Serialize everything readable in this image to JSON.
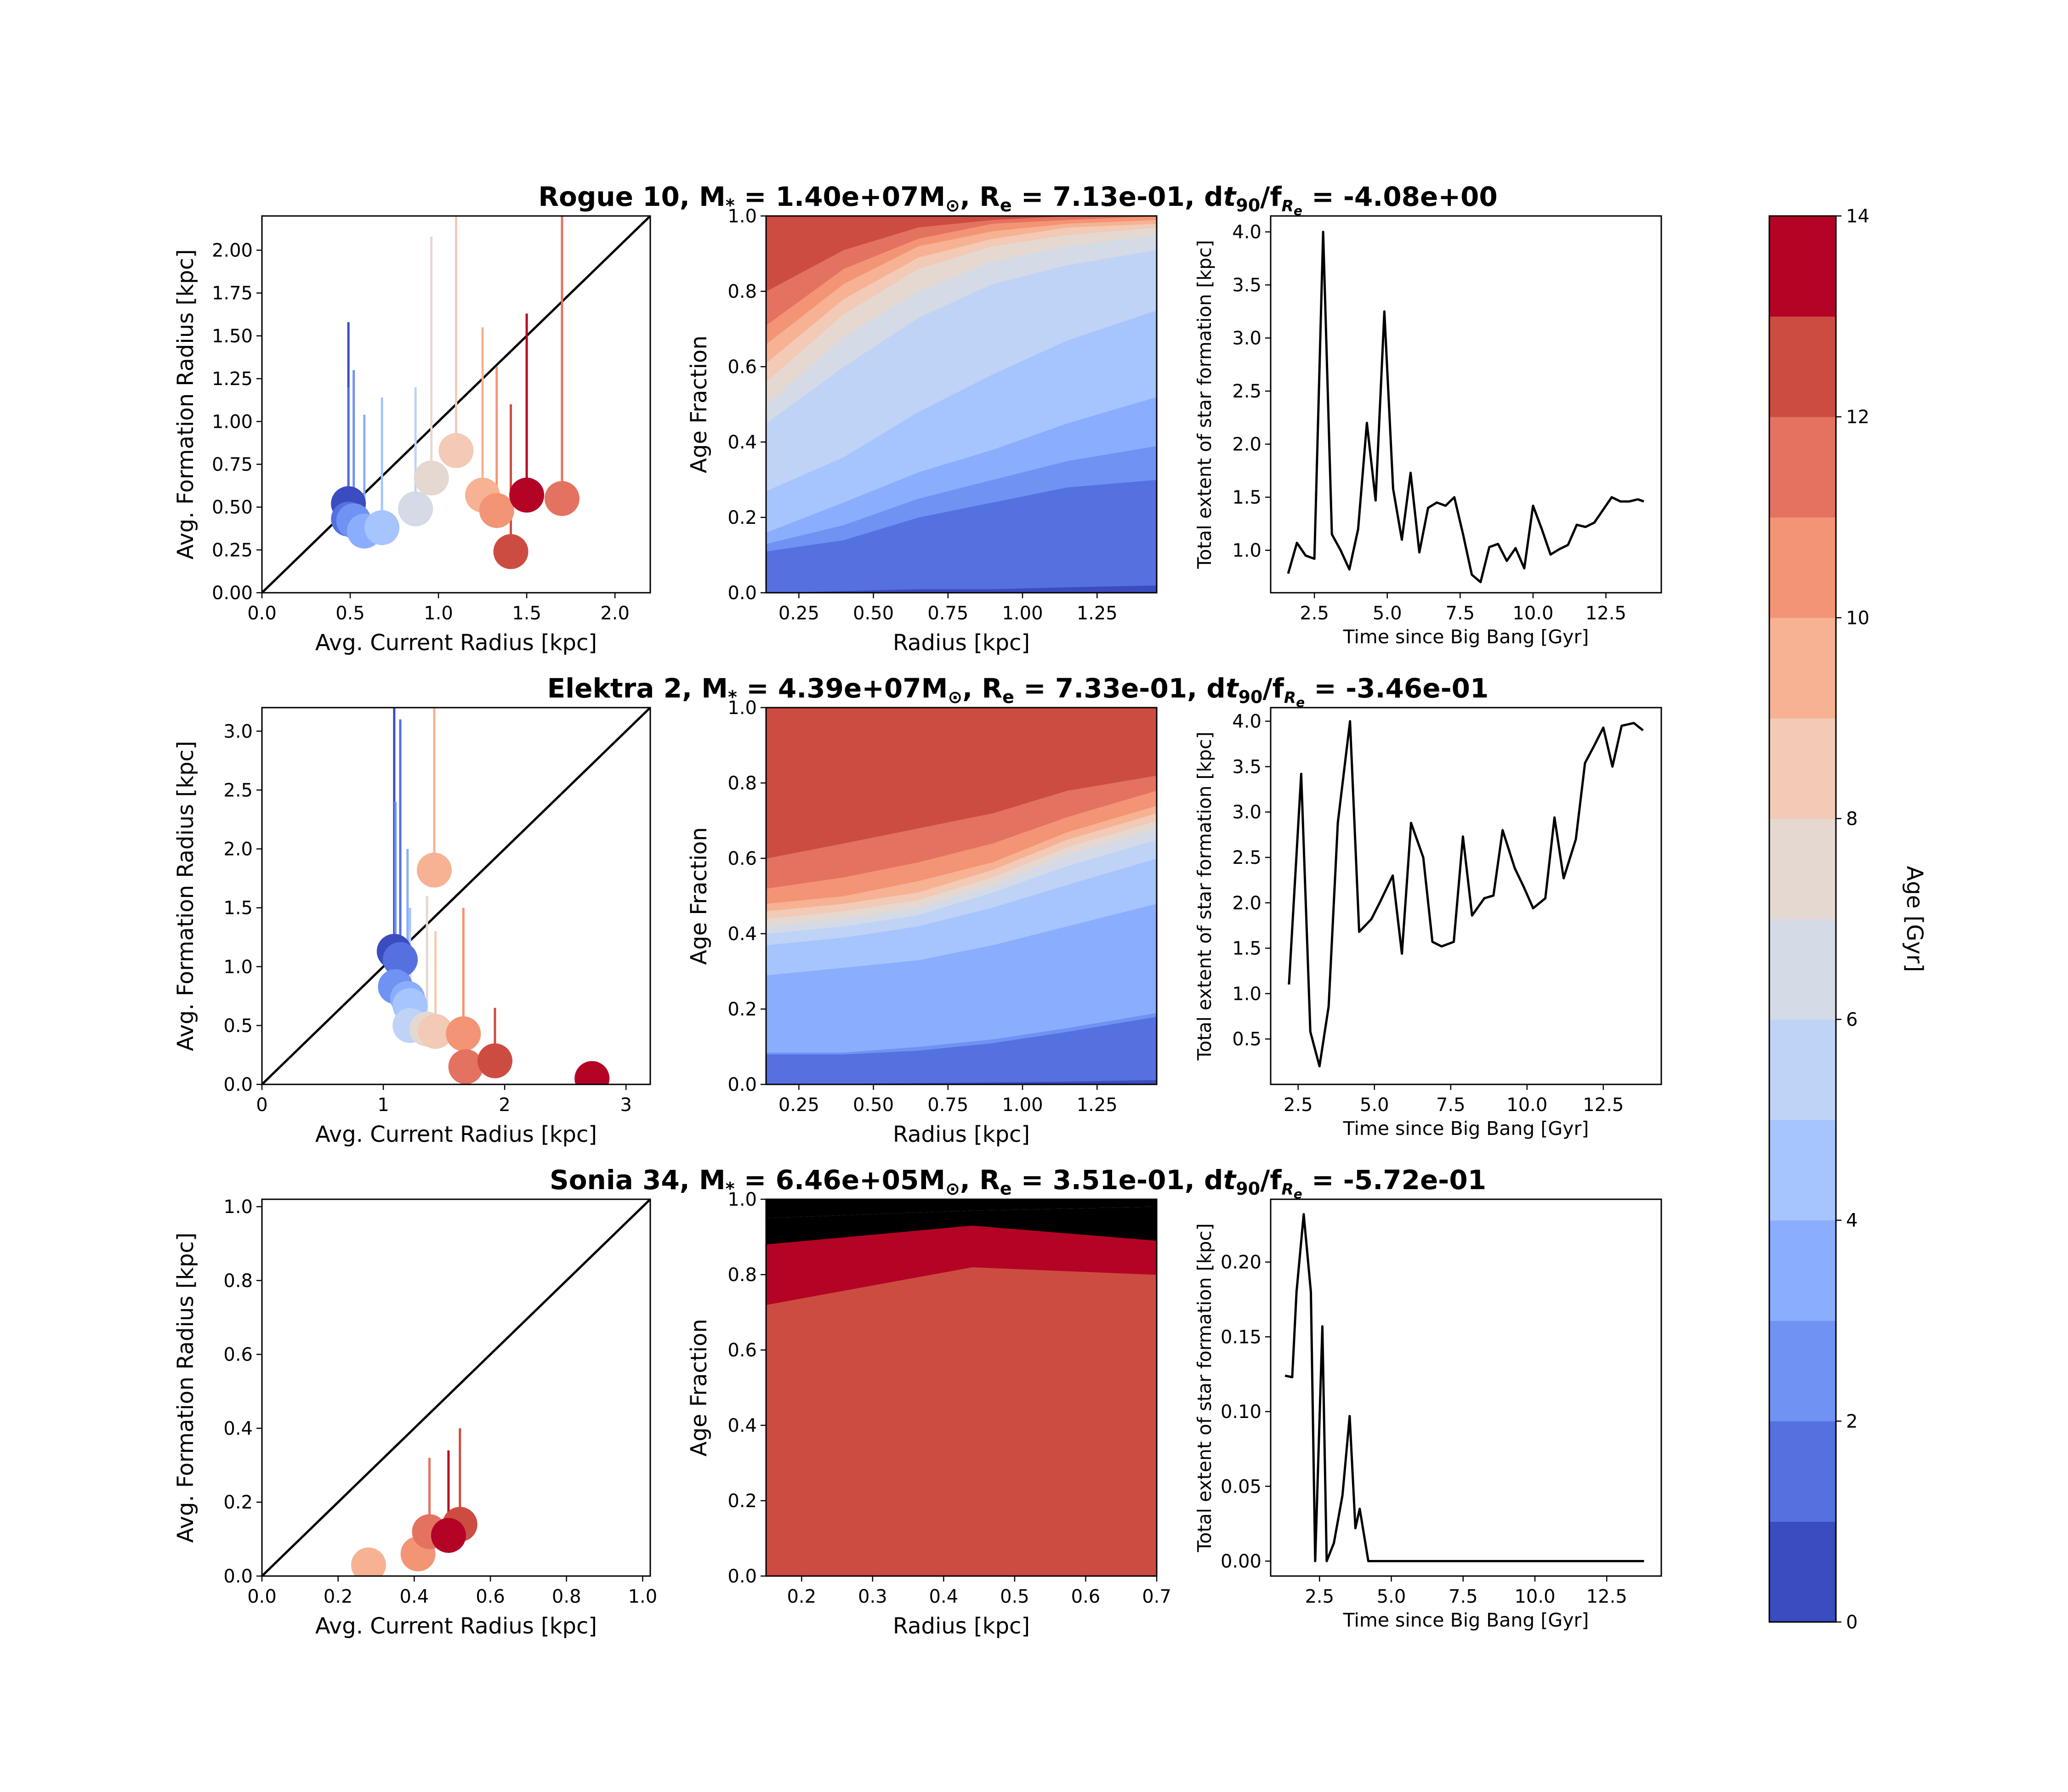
{
  "colorbar": {
    "label": "Age [Gyr]",
    "ticks": [
      0,
      2,
      4,
      6,
      8,
      10,
      12,
      14
    ],
    "levels": 14,
    "colors": [
      "#3b4cc0",
      "#5570df",
      "#6f92f3",
      "#8badfd",
      "#a6c4fe",
      "#bfd3f6",
      "#d4dbe6",
      "#e5d8d1",
      "#f2cab5",
      "#f6b293",
      "#f39475",
      "#e47260",
      "#cd4c41",
      "#b40426"
    ]
  },
  "rows": [
    {
      "title": "Rogue 10, M* = 1.40e+07M⊙, Re = 7.13e-01, dt90/fRe = -4.08e+00",
      "title_parts": {
        "name": "Rogue 10",
        "mass": "1.40e+07",
        "re": "7.13e-01",
        "dt": "-4.08e+00"
      },
      "scatter": {
        "xlabel": "Avg. Current Radius [kpc]",
        "ylabel": "Avg. Formation Radius [kpc]",
        "xlim": [
          0,
          2.2
        ],
        "ylim": [
          0,
          2.2
        ],
        "xticks": [
          "0.0",
          "0.5",
          "1.0",
          "1.5",
          "2.0"
        ],
        "yticks": [
          "0.00",
          "0.25",
          "0.50",
          "0.75",
          "1.00",
          "1.25",
          "1.50",
          "1.75",
          "2.00"
        ],
        "points": [
          {
            "age": 0.5,
            "x": 0.49,
            "y": 0.52,
            "top": 1.58
          },
          {
            "age": 1.5,
            "x": 0.49,
            "y": 0.43,
            "top": 1.2
          },
          {
            "age": 2.5,
            "x": 0.52,
            "y": 0.42,
            "top": 1.3
          },
          {
            "age": 3.5,
            "x": 0.58,
            "y": 0.36,
            "top": 1.04
          },
          {
            "age": 4.5,
            "x": 0.68,
            "y": 0.38,
            "top": 1.14
          },
          {
            "age": 5.5,
            "x": 0.87,
            "y": 0.49,
            "top": 1.2
          },
          {
            "age": 6.5,
            "x": 0.87,
            "y": 0.49,
            "top": 0.5
          },
          {
            "age": 7.5,
            "x": 0.96,
            "y": 0.67,
            "top": 2.08
          },
          {
            "age": 8.5,
            "x": 1.1,
            "y": 0.83,
            "top": 2.2
          },
          {
            "age": 9.5,
            "x": 1.25,
            "y": 0.57,
            "top": 1.55
          },
          {
            "age": 10.5,
            "x": 1.33,
            "y": 0.48,
            "top": 1.32
          },
          {
            "age": 11.5,
            "x": 1.7,
            "y": 0.55,
            "top": 2.2
          },
          {
            "age": 12.5,
            "x": 1.41,
            "y": 0.24,
            "top": 1.1
          },
          {
            "age": 13.5,
            "x": 1.5,
            "y": 0.57,
            "top": 1.63
          }
        ]
      },
      "stack": {
        "xlabel": "Radius [kpc]",
        "ylabel": "Age Fraction",
        "xlim": [
          0.14,
          1.45
        ],
        "ylim": [
          0,
          1
        ],
        "xticks": [
          "0.25",
          "0.50",
          "0.75",
          "1.00",
          "1.25"
        ],
        "yticks": [
          "0.0",
          "0.2",
          "0.4",
          "0.6",
          "0.8",
          "1.0"
        ],
        "radii": [
          0.14,
          0.4,
          0.65,
          0.9,
          1.15,
          1.45
        ],
        "boundaries": [
          [
            0.0,
            0.005,
            0.01,
            0.01,
            0.015,
            0.02
          ],
          [
            0.11,
            0.14,
            0.2,
            0.24,
            0.28,
            0.3
          ],
          [
            0.13,
            0.18,
            0.25,
            0.3,
            0.35,
            0.39
          ],
          [
            0.16,
            0.24,
            0.32,
            0.38,
            0.45,
            0.52
          ],
          [
            0.27,
            0.36,
            0.48,
            0.58,
            0.67,
            0.75
          ],
          [
            0.45,
            0.6,
            0.73,
            0.82,
            0.87,
            0.91
          ],
          [
            0.5,
            0.68,
            0.8,
            0.88,
            0.92,
            0.95
          ],
          [
            0.56,
            0.74,
            0.86,
            0.92,
            0.95,
            0.97
          ],
          [
            0.61,
            0.78,
            0.89,
            0.94,
            0.97,
            0.98
          ],
          [
            0.66,
            0.82,
            0.92,
            0.96,
            0.98,
            0.99
          ],
          [
            0.71,
            0.86,
            0.94,
            0.98,
            0.99,
            1.0
          ],
          [
            0.8,
            0.91,
            0.97,
            0.99,
            1.0,
            1.0
          ],
          [
            1.0,
            1.0,
            1.0,
            1.0,
            1.0,
            1.0
          ]
        ]
      },
      "line": {
        "xlabel": "Time since Big Bang [Gyr]",
        "ylabel": "Total extent of star formation [kpc]",
        "xlim": [
          1.0,
          14.4
        ],
        "ylim": [
          0.6,
          4.15
        ],
        "xticks": [
          "2.5",
          "5.0",
          "7.5",
          "10.0",
          "12.5"
        ],
        "yticks": [
          "1.0",
          "1.5",
          "2.0",
          "2.5",
          "3.0",
          "3.5",
          "4.0"
        ],
        "x": [
          1.6,
          1.9,
          2.2,
          2.5,
          2.8,
          3.1,
          3.4,
          3.7,
          4.0,
          4.3,
          4.6,
          4.9,
          5.2,
          5.5,
          5.8,
          6.1,
          6.4,
          6.7,
          7.0,
          7.3,
          7.6,
          7.9,
          8.2,
          8.5,
          8.8,
          9.1,
          9.4,
          9.7,
          10.0,
          10.3,
          10.6,
          10.9,
          11.2,
          11.5,
          11.8,
          12.1,
          12.4,
          12.7,
          13.0,
          13.3,
          13.6,
          13.8
        ],
        "y": [
          0.78,
          1.07,
          0.95,
          0.92,
          4.0,
          1.15,
          1.0,
          0.82,
          1.2,
          2.2,
          1.47,
          3.25,
          1.58,
          1.1,
          1.73,
          0.98,
          1.4,
          1.45,
          1.42,
          1.5,
          1.15,
          0.77,
          0.7,
          1.03,
          1.06,
          0.9,
          1.02,
          0.83,
          1.42,
          1.2,
          0.96,
          1.01,
          1.05,
          1.24,
          1.22,
          1.26,
          1.38,
          1.5,
          1.46,
          1.46,
          1.48,
          1.46
        ]
      }
    },
    {
      "title": "Elektra 2, M* = 4.39e+07M⊙, Re = 7.33e-01, dt90/fRe = -3.46e-01",
      "title_parts": {
        "name": "Elektra 2",
        "mass": "4.39e+07",
        "re": "7.33e-01",
        "dt": "-3.46e-01"
      },
      "scatter": {
        "xlabel": "Avg. Current Radius [kpc]",
        "ylabel": "Avg. Formation Radius [kpc]",
        "xlim": [
          0,
          3.2
        ],
        "ylim": [
          0,
          3.2
        ],
        "xticks": [
          "0",
          "1",
          "2",
          "3"
        ],
        "yticks": [
          "0.0",
          "0.5",
          "1.0",
          "1.5",
          "2.0",
          "2.5",
          "3.0"
        ],
        "points": [
          {
            "age": 0.5,
            "x": 1.09,
            "y": 1.13,
            "top": 3.2
          },
          {
            "age": 1.5,
            "x": 1.14,
            "y": 1.06,
            "top": 3.1
          },
          {
            "age": 2.5,
            "x": 1.1,
            "y": 0.83,
            "top": 2.4
          },
          {
            "age": 3.5,
            "x": 1.2,
            "y": 0.73,
            "top": 2.0
          },
          {
            "age": 4.5,
            "x": 1.22,
            "y": 0.67,
            "top": 1.5
          },
          {
            "age": 5.5,
            "x": 1.22,
            "y": 0.5,
            "top": 1.3
          },
          {
            "age": 7.5,
            "x": 1.36,
            "y": 0.47,
            "top": 1.6
          },
          {
            "age": 8.5,
            "x": 1.43,
            "y": 0.45,
            "top": 1.3
          },
          {
            "age": 9.5,
            "x": 1.42,
            "y": 1.82,
            "top": 3.2
          },
          {
            "age": 10.5,
            "x": 1.66,
            "y": 0.43,
            "top": 1.5
          },
          {
            "age": 11.5,
            "x": 1.68,
            "y": 0.15,
            "top": 0.55
          },
          {
            "age": 12.5,
            "x": 1.92,
            "y": 0.2,
            "top": 0.65
          },
          {
            "age": 13.5,
            "x": 2.72,
            "y": 0.05,
            "top": 0.1
          }
        ]
      },
      "stack": {
        "xlabel": "Radius [kpc]",
        "ylabel": "Age Fraction",
        "xlim": [
          0.14,
          1.45
        ],
        "ylim": [
          0,
          1
        ],
        "xticks": [
          "0.25",
          "0.50",
          "0.75",
          "1.00",
          "1.25"
        ],
        "yticks": [
          "0.0",
          "0.2",
          "0.4",
          "0.6",
          "0.8",
          "1.0"
        ],
        "radii": [
          0.14,
          0.4,
          0.65,
          0.9,
          1.15,
          1.45
        ],
        "boundaries": [
          [
            0.0,
            0.002,
            0.004,
            0.006,
            0.008,
            0.012
          ],
          [
            0.08,
            0.08,
            0.09,
            0.11,
            0.14,
            0.18
          ],
          [
            0.085,
            0.085,
            0.1,
            0.12,
            0.15,
            0.19
          ],
          [
            0.29,
            0.31,
            0.33,
            0.37,
            0.42,
            0.48
          ],
          [
            0.37,
            0.39,
            0.42,
            0.47,
            0.53,
            0.6
          ],
          [
            0.4,
            0.42,
            0.45,
            0.51,
            0.58,
            0.65
          ],
          [
            0.42,
            0.44,
            0.47,
            0.53,
            0.61,
            0.68
          ],
          [
            0.44,
            0.46,
            0.49,
            0.55,
            0.63,
            0.7
          ],
          [
            0.46,
            0.48,
            0.51,
            0.57,
            0.65,
            0.72
          ],
          [
            0.48,
            0.5,
            0.54,
            0.59,
            0.67,
            0.74
          ],
          [
            0.52,
            0.55,
            0.59,
            0.64,
            0.71,
            0.78
          ],
          [
            0.6,
            0.64,
            0.68,
            0.72,
            0.78,
            0.82
          ],
          [
            1.0,
            1.0,
            1.0,
            1.0,
            1.0,
            1.0
          ]
        ]
      },
      "line": {
        "xlabel": "Time since Big Bang [Gyr]",
        "ylabel": "Total extent of star formation [kpc]",
        "xlim": [
          1.6,
          14.4
        ],
        "ylim": [
          0.0,
          4.15
        ],
        "xticks": [
          "2.5",
          "5.0",
          "7.5",
          "10.0",
          "12.5"
        ],
        "yticks": [
          "0.5",
          "1.0",
          "1.5",
          "2.0",
          "2.5",
          "3.0",
          "3.5",
          "4.0"
        ],
        "x": [
          2.2,
          2.6,
          2.9,
          3.2,
          3.5,
          3.8,
          4.2,
          4.5,
          4.9,
          5.2,
          5.6,
          5.9,
          6.2,
          6.6,
          6.9,
          7.2,
          7.6,
          7.9,
          8.2,
          8.6,
          8.9,
          9.2,
          9.6,
          9.9,
          10.2,
          10.6,
          10.9,
          11.2,
          11.6,
          11.9,
          12.2,
          12.5,
          12.8,
          13.1,
          13.5,
          13.8
        ],
        "y": [
          1.1,
          3.42,
          0.58,
          0.2,
          0.86,
          2.88,
          4.0,
          1.68,
          1.82,
          2.02,
          2.3,
          1.44,
          2.88,
          2.5,
          1.57,
          1.52,
          1.57,
          2.73,
          1.86,
          2.05,
          2.08,
          2.8,
          2.38,
          2.17,
          1.94,
          2.05,
          2.94,
          2.27,
          2.7,
          3.54,
          3.73,
          3.93,
          3.5,
          3.95,
          3.98,
          3.9
        ]
      }
    },
    {
      "title": "Sonia 34, M* =  6.46e+05M⊙, Re = 3.51e-01, dt90/fRe = -5.72e-01",
      "title_parts": {
        "name": "Sonia 34",
        "mass": " 6.46e+05",
        "re": "3.51e-01",
        "dt": "-5.72e-01"
      },
      "scatter": {
        "xlabel": "Avg. Current Radius [kpc]",
        "ylabel": "Avg. Formation Radius [kpc]",
        "xlim": [
          0,
          1.02
        ],
        "ylim": [
          0,
          1.02
        ],
        "xticks": [
          "0.0",
          "0.2",
          "0.4",
          "0.6",
          "0.8",
          "1.0"
        ],
        "yticks": [
          "0.0",
          "0.2",
          "0.4",
          "0.6",
          "0.8",
          "1.0"
        ],
        "points": [
          {
            "age": 9.5,
            "x": 0.28,
            "y": 0.03,
            "top": 0.03
          },
          {
            "age": 10.5,
            "x": 0.41,
            "y": 0.06,
            "top": 0.06
          },
          {
            "age": 11.5,
            "x": 0.44,
            "y": 0.12,
            "top": 0.32
          },
          {
            "age": 12.5,
            "x": 0.52,
            "y": 0.14,
            "top": 0.4
          },
          {
            "age": 13.5,
            "x": 0.49,
            "y": 0.11,
            "top": 0.34
          }
        ]
      },
      "stack": {
        "xlabel": "Radius [kpc]",
        "ylabel": "Age Fraction",
        "xlim": [
          0.15,
          0.7
        ],
        "ylim": [
          0,
          1
        ],
        "xticks": [
          "0.2",
          "0.3",
          "0.4",
          "0.5",
          "0.6",
          "0.7"
        ],
        "yticks": [
          "0.0",
          "0.2",
          "0.4",
          "0.6",
          "0.8",
          "1.0"
        ],
        "radii": [
          0.15,
          0.44,
          0.7
        ],
        "boundaries": [
          [
            0.0,
            0.0,
            0.0
          ],
          [
            0.0,
            0.0,
            0.0
          ],
          [
            0.0,
            0.0,
            0.0
          ],
          [
            0.0,
            0.0,
            0.0
          ],
          [
            0.0,
            0.0,
            0.0
          ],
          [
            0.0,
            0.0,
            0.0
          ],
          [
            0.0,
            0.0,
            0.0
          ],
          [
            0.0,
            0.0,
            0.0
          ],
          [
            0.0,
            0.0,
            0.0
          ],
          [
            0.0,
            0.0,
            0.0
          ],
          [
            0.0,
            0.0,
            0.0
          ],
          [
            0.0,
            0.0,
            0.0
          ],
          [
            0.72,
            0.82,
            0.8
          ],
          [
            0.88,
            0.93,
            0.89
          ],
          [
            0.95,
            0.97,
            0.98
          ],
          [
            1.0,
            1.0,
            1.0
          ]
        ]
      },
      "line": {
        "xlabel": "Time since Big Bang [Gyr]",
        "ylabel": "Total extent of star formation [kpc]",
        "xlim": [
          0.8,
          14.4
        ],
        "ylim": [
          -0.01,
          0.242
        ],
        "xticks": [
          "2.5",
          "5.0",
          "7.5",
          "10.0",
          "12.5"
        ],
        "yticks": [
          "0.00",
          "0.05",
          "0.10",
          "0.15",
          "0.20"
        ],
        "x": [
          1.3,
          1.55,
          1.7,
          1.95,
          2.2,
          2.35,
          2.6,
          2.75,
          3.0,
          3.3,
          3.55,
          3.75,
          3.9,
          4.2,
          13.8
        ],
        "y": [
          0.124,
          0.123,
          0.18,
          0.232,
          0.18,
          0.0,
          0.157,
          0.0,
          0.012,
          0.044,
          0.097,
          0.022,
          0.035,
          0.0,
          0.0
        ]
      }
    }
  ]
}
